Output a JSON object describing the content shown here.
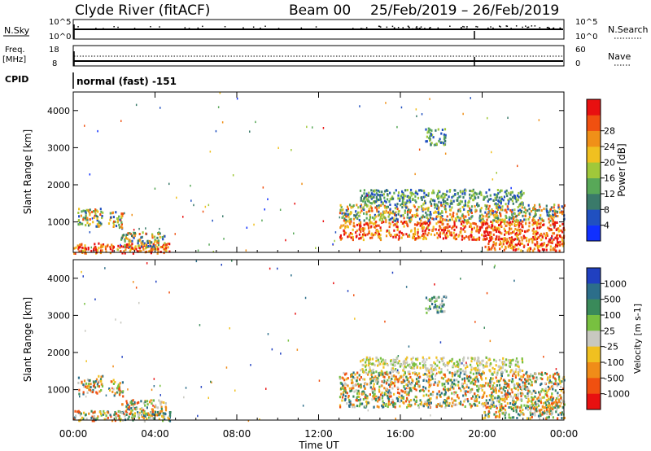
{
  "header": {
    "station": "Clyde River (fitACF)",
    "beam": "Beam 00",
    "date_range": "25/Feb/2019 – 26/Feb/2019"
  },
  "status_panels": {
    "nsky": {
      "label": "N.Sky",
      "left_ticks": [
        "10^5",
        "10^0"
      ],
      "right_ticks": [
        "10^5",
        "10^0"
      ],
      "legend_label": "N.Search"
    },
    "freq": {
      "label_line1": "Freq.",
      "label_line2": "[MHz]",
      "left_ticks": [
        "18",
        "8"
      ],
      "right_ticks": [
        "60",
        "0"
      ],
      "legend_label": "Nave"
    },
    "cpid": {
      "label": "CPID",
      "value": "normal (fast) -151"
    }
  },
  "time_axis": {
    "title": "Time UT",
    "ticks": [
      "00:00",
      "04:00",
      "08:00",
      "12:00",
      "16:00",
      "20:00",
      "00:00"
    ],
    "hours": [
      0,
      4,
      8,
      12,
      16,
      20,
      24
    ]
  },
  "chart_data": [
    {
      "type": "heatmap",
      "ylabel": "Slant Range [km]",
      "yticks": [
        "1000",
        "2000",
        "3000",
        "4000"
      ],
      "yrange_km": [
        180,
        4500
      ],
      "xrange_hours": [
        0,
        24
      ],
      "colorbar": {
        "label": "Power [dB]",
        "ticks": [
          "4",
          "8",
          "12",
          "16",
          "20",
          "24",
          "28"
        ],
        "colors": [
          "#1030ff",
          "#2050c0",
          "#3a7a6a",
          "#58a858",
          "#a0c83a",
          "#f0c020",
          "#f09018",
          "#f05010",
          "#e81010"
        ]
      },
      "regions": [
        {
          "t0": 0.2,
          "t1": 1.4,
          "r0": 900,
          "r1": 1400,
          "level": "mid"
        },
        {
          "t0": 1.7,
          "t1": 2.4,
          "r0": 850,
          "r1": 1300,
          "level": "mid"
        },
        {
          "t0": 0,
          "t1": 4.8,
          "r0": 180,
          "r1": 450,
          "level": "high"
        },
        {
          "t0": 2.3,
          "t1": 4.5,
          "r0": 350,
          "r1": 750,
          "level": "mid"
        },
        {
          "t0": 13,
          "t1": 24,
          "r0": 550,
          "r1": 1050,
          "level": "high"
        },
        {
          "t0": 13,
          "t1": 24,
          "r0": 1050,
          "r1": 1500,
          "level": "mid"
        },
        {
          "t0": 14,
          "t1": 22,
          "r0": 1500,
          "r1": 1900,
          "level": "low"
        },
        {
          "t0": 17.2,
          "t1": 18.2,
          "r0": 3100,
          "r1": 3550,
          "level": "low"
        },
        {
          "t0": 20,
          "t1": 24,
          "r0": 250,
          "r1": 600,
          "level": "high"
        }
      ]
    },
    {
      "type": "heatmap",
      "ylabel": "Slant Range [km]",
      "yticks": [
        "1000",
        "2000",
        "3000",
        "4000"
      ],
      "yrange_km": [
        180,
        4500
      ],
      "xrange_hours": [
        0,
        24
      ],
      "colorbar": {
        "label": "Velocity [m s-1]",
        "ticks": [
          "1000",
          "500",
          "100",
          "25",
          "-25",
          "-100",
          "-500",
          "-1000"
        ],
        "colors": [
          "#2040c0",
          "#2c6e8a",
          "#3a8a5a",
          "#78c040",
          "#c8c8c0",
          "#f0c020",
          "#f08c18",
          "#f05010",
          "#e81010"
        ]
      },
      "regions": [
        {
          "t0": 0.2,
          "t1": 1.4,
          "r0": 900,
          "r1": 1400,
          "level": "mid"
        },
        {
          "t0": 1.7,
          "t1": 2.4,
          "r0": 850,
          "r1": 1300,
          "level": "mid"
        },
        {
          "t0": 0,
          "t1": 4.8,
          "r0": 180,
          "r1": 450,
          "level": "mid"
        },
        {
          "t0": 2.3,
          "t1": 4.5,
          "r0": 350,
          "r1": 750,
          "level": "mid"
        },
        {
          "t0": 13,
          "t1": 24,
          "r0": 550,
          "r1": 1050,
          "level": "mid"
        },
        {
          "t0": 13,
          "t1": 24,
          "r0": 1050,
          "r1": 1500,
          "level": "mid"
        },
        {
          "t0": 14,
          "t1": 22,
          "r0": 1500,
          "r1": 1900,
          "level": "gray"
        },
        {
          "t0": 17.2,
          "t1": 18.2,
          "r0": 3100,
          "r1": 3550,
          "level": "low"
        },
        {
          "t0": 20,
          "t1": 24,
          "r0": 250,
          "r1": 600,
          "level": "mid"
        }
      ]
    }
  ]
}
